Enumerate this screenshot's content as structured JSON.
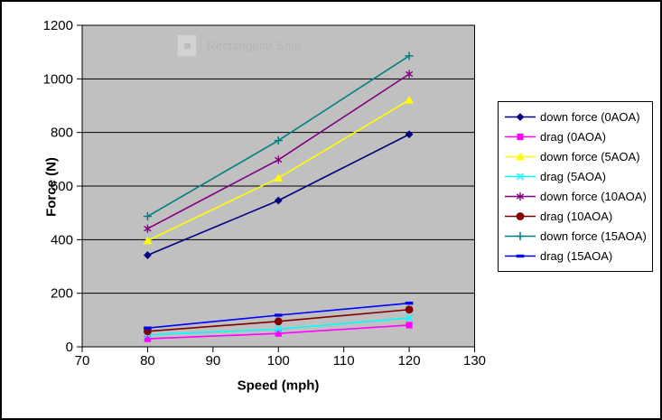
{
  "watermark": {
    "text": "Rectangular Snip"
  },
  "chart_data": {
    "type": "line",
    "title": "",
    "xlabel": "Speed (mph)",
    "ylabel": "Force (N)",
    "x": [
      80,
      100,
      120
    ],
    "xlim": [
      70,
      130
    ],
    "xticks": [
      70,
      80,
      90,
      100,
      110,
      120,
      130
    ],
    "ylim": [
      0,
      1200
    ],
    "yticks": [
      0,
      200,
      400,
      600,
      800,
      1000,
      1200
    ],
    "grid": "horizontal gridlines on, vertical off",
    "legend_position": "right-outside",
    "plot_background": "#c0c0c0",
    "axis_color": "#000000",
    "series": [
      {
        "name": "down force (0AOA)",
        "color": "#000080",
        "marker": "diamond",
        "values": [
          342,
          546,
          793
        ]
      },
      {
        "name": "drag (0AOA)",
        "color": "#ff00ff",
        "marker": "square",
        "values": [
          30,
          50,
          81
        ]
      },
      {
        "name": "down force (5AOA)",
        "color": "#ffff00",
        "marker": "triangle",
        "values": [
          396,
          630,
          921
        ]
      },
      {
        "name": "drag (5AOA)",
        "color": "#00ffff",
        "marker": "x",
        "values": [
          45,
          66,
          108
        ]
      },
      {
        "name": "down force (10AOA)",
        "color": "#800080",
        "marker": "asterisk",
        "values": [
          441,
          698,
          1018
        ]
      },
      {
        "name": "drag (10AOA)",
        "color": "#800000",
        "marker": "circle",
        "values": [
          58,
          95,
          139
        ]
      },
      {
        "name": "down force (15AOA)",
        "color": "#008080",
        "marker": "plus",
        "values": [
          487,
          770,
          1086
        ]
      },
      {
        "name": "drag (15AOA)",
        "color": "#0000ff",
        "marker": "dash",
        "values": [
          70,
          118,
          163
        ]
      }
    ]
  }
}
